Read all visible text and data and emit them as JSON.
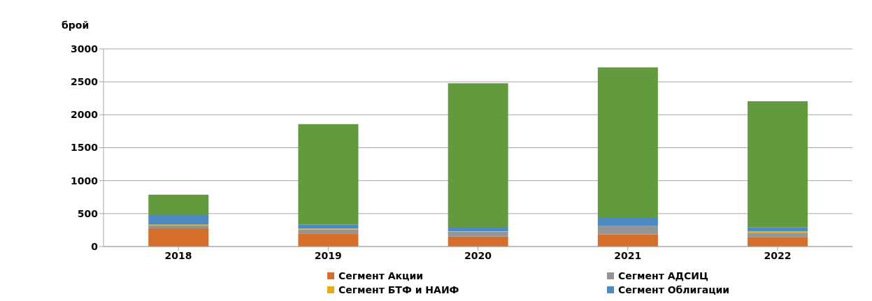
{
  "chart_data": {
    "type": "bar",
    "stacked": true,
    "ylabel": "брой",
    "categories": [
      "2018",
      "2019",
      "2020",
      "2021",
      "2022"
    ],
    "series": [
      {
        "name": "Сегмент Акции",
        "color": "#d46e2a",
        "values": [
          275,
          200,
          150,
          185,
          145
        ]
      },
      {
        "name": "Сегмент АДСИЦ",
        "color": "#959595",
        "values": [
          45,
          60,
          75,
          125,
          65
        ]
      },
      {
        "name": "Сегмент БТФ и НАИФ",
        "color": "#e6ad12",
        "values": [
          12,
          12,
          8,
          null,
          20
        ]
      },
      {
        "name": "Сегмент Облигации",
        "color": "#4e89c0",
        "values": [
          145,
          60,
          65,
          135,
          60
        ]
      },
      {
        "color": "#629a3d",
        "values": [
          310,
          1525,
          2180,
          2275,
          1915
        ]
      }
    ],
    "ylim": [
      0,
      3000
    ],
    "yticks": [
      0,
      500,
      1000,
      1500,
      2000,
      2500,
      3000
    ],
    "grid": "y",
    "legend": "bottom"
  }
}
